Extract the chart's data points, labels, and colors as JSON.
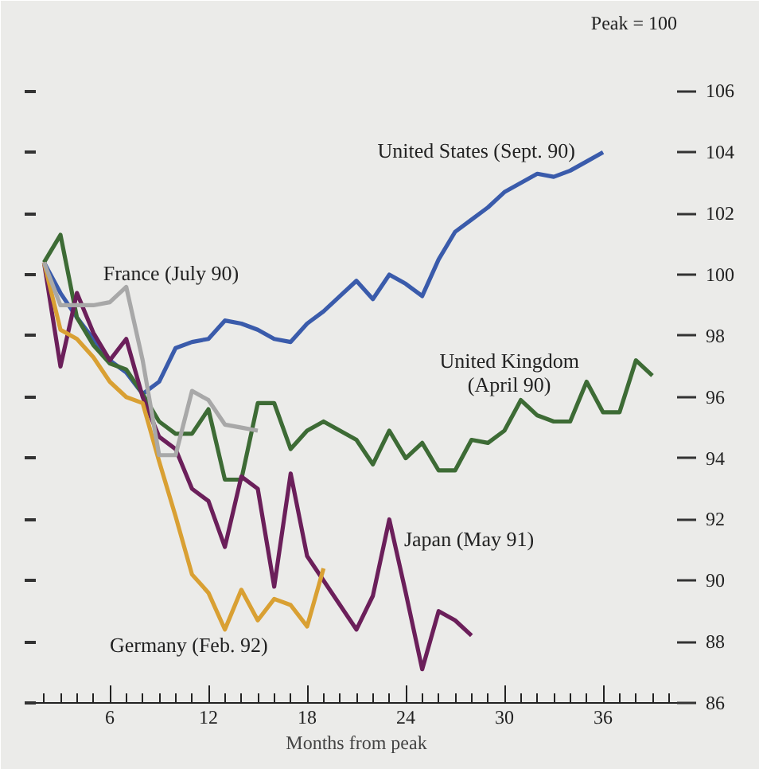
{
  "chart_data": {
    "type": "line",
    "xlabel": "Months from peak",
    "annotations": [
      "Peak = 100"
    ],
    "xlim": [
      1.5,
      40.5
    ],
    "xticks": [
      {
        "value": 2,
        "label": null
      },
      {
        "value": 3,
        "label": null
      },
      {
        "value": 4,
        "label": null
      },
      {
        "value": 5,
        "label": null
      },
      6,
      {
        "value": 7,
        "label": null
      },
      {
        "value": 8,
        "label": null
      },
      {
        "value": 9,
        "label": null
      },
      {
        "value": 10,
        "label": null
      },
      {
        "value": 11,
        "label": null
      },
      12,
      {
        "value": 13,
        "label": null
      },
      {
        "value": 14,
        "label": null
      },
      {
        "value": 15,
        "label": null
      },
      {
        "value": 16,
        "label": null
      },
      {
        "value": 17,
        "label": null
      },
      18,
      {
        "value": 19,
        "label": null
      },
      {
        "value": 20,
        "label": null
      },
      {
        "value": 21,
        "label": null
      },
      {
        "value": 22,
        "label": null
      },
      {
        "value": 23,
        "label": null
      },
      24,
      {
        "value": 25,
        "label": null
      },
      {
        "value": 26,
        "label": null
      },
      {
        "value": 27,
        "label": null
      },
      {
        "value": 28,
        "label": null
      },
      {
        "value": 29,
        "label": null
      },
      30,
      {
        "value": 31,
        "label": null
      },
      {
        "value": 32,
        "label": null
      },
      {
        "value": 33,
        "label": null
      },
      {
        "value": 34,
        "label": null
      },
      {
        "value": 35,
        "label": null
      },
      36,
      {
        "value": 37,
        "label": null
      },
      {
        "value": 38,
        "label": null
      },
      {
        "value": 39,
        "label": null
      },
      {
        "value": 40,
        "label": null
      }
    ],
    "ylim": [
      86,
      107.6
    ],
    "yticks": [
      86,
      88,
      90,
      92,
      94,
      96,
      98,
      100,
      102,
      104,
      106
    ],
    "grid": false,
    "legend": false,
    "marker": "none",
    "line_style": "solid",
    "series": [
      {
        "name": "United States (Sept. 90)",
        "color": "#3a5bab",
        "x": [
          2,
          3,
          4,
          5,
          6,
          7,
          8,
          9,
          10,
          11,
          12,
          13,
          14,
          15,
          16,
          17,
          18,
          19,
          20,
          21,
          22,
          23,
          24,
          25,
          26,
          27,
          28,
          29,
          30,
          31,
          32,
          33,
          34,
          35,
          36
        ],
        "values": [
          100.4,
          99.4,
          98.6,
          97.9,
          97.2,
          96.8,
          96.1,
          96.5,
          97.6,
          97.8,
          97.9,
          98.5,
          98.4,
          98.2,
          97.9,
          97.8,
          98.4,
          98.8,
          99.3,
          99.8,
          99.2,
          100.0,
          99.7,
          99.3,
          100.5,
          101.4,
          101.8,
          102.2,
          102.7,
          103.0,
          103.3,
          103.2,
          103.4,
          103.7,
          104.0
        ]
      },
      {
        "name": "United Kingdom\n(April 90)",
        "color": "#3d6b35",
        "x": [
          2,
          3,
          4,
          5,
          6,
          7,
          8,
          9,
          10,
          11,
          12,
          13,
          14,
          15,
          16,
          17,
          18,
          19,
          20,
          21,
          22,
          23,
          24,
          25,
          26,
          27,
          28,
          29,
          30,
          31,
          32,
          33,
          34,
          35,
          36,
          37,
          38,
          39
        ],
        "values": [
          100.4,
          101.3,
          98.6,
          97.7,
          97.1,
          96.9,
          96.1,
          95.2,
          94.8,
          94.8,
          95.6,
          93.3,
          93.3,
          95.8,
          95.8,
          94.3,
          94.9,
          95.2,
          94.9,
          94.6,
          93.8,
          94.9,
          94.0,
          94.5,
          93.6,
          93.6,
          94.6,
          94.5,
          94.9,
          95.9,
          95.4,
          95.2,
          95.2,
          96.5,
          95.5,
          95.5,
          97.2,
          96.7
        ]
      },
      {
        "name": "Japan (May 91)",
        "color": "#6b1f5a",
        "x": [
          2,
          3,
          4,
          5,
          6,
          7,
          8,
          9,
          10,
          11,
          12,
          13,
          14,
          15,
          16,
          17,
          18,
          19,
          20,
          21,
          22,
          23,
          24,
          25,
          26,
          27,
          28
        ],
        "values": [
          100.4,
          97.0,
          99.4,
          98.1,
          97.2,
          97.9,
          96.0,
          94.7,
          94.3,
          93.0,
          92.6,
          91.1,
          93.4,
          93.0,
          89.8,
          93.5,
          90.8,
          90.0,
          89.2,
          88.4,
          89.5,
          92.0,
          89.6,
          87.1,
          89.0,
          88.7,
          88.2
        ]
      },
      {
        "name": "Germany (Feb. 92)",
        "color": "#d9a033",
        "x": [
          2,
          3,
          4,
          5,
          6,
          7,
          8,
          9,
          10,
          11,
          12,
          13,
          14,
          15,
          16,
          17,
          18,
          19
        ],
        "values": [
          100.4,
          98.2,
          97.9,
          97.3,
          96.5,
          96.0,
          95.8,
          93.9,
          92.1,
          90.2,
          89.6,
          88.4,
          89.7,
          88.7,
          89.4,
          89.2,
          88.5,
          90.4
        ]
      },
      {
        "name": "France (July 90)",
        "color": "#a8a8a8",
        "x": [
          2,
          3,
          4,
          5,
          6,
          7,
          8,
          9,
          10,
          11,
          12,
          13,
          14,
          15
        ],
        "values": [
          100.4,
          99.0,
          99.0,
          99.0,
          99.1,
          99.6,
          97.2,
          94.1,
          94.1,
          96.2,
          95.9,
          95.1,
          95.0,
          94.9
        ]
      }
    ]
  }
}
